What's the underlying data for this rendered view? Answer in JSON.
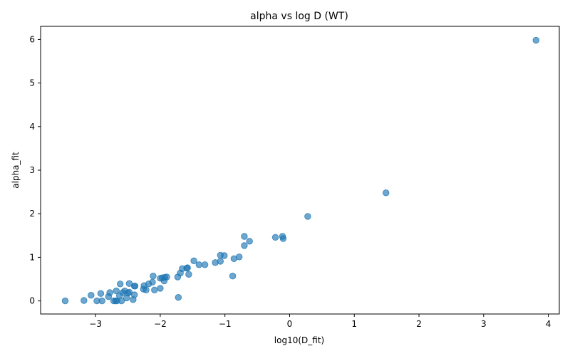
{
  "chart_data": {
    "type": "scatter",
    "title": "alpha vs log D (WT)",
    "xlabel": "log10(D_fit)",
    "ylabel": "alpha_fit",
    "xlim": [
      -3.85,
      4.17
    ],
    "ylim": [
      -0.3,
      6.3
    ],
    "xticks": [
      -3,
      -2,
      -1,
      0,
      1,
      2,
      3,
      4
    ],
    "xtick_labels": [
      "−3",
      "−2",
      "−1",
      "0",
      "1",
      "2",
      "3",
      "4"
    ],
    "yticks": [
      0,
      1,
      2,
      3,
      4,
      5,
      6
    ],
    "ytick_labels": [
      "0",
      "1",
      "2",
      "3",
      "4",
      "5",
      "6"
    ],
    "grid": false,
    "legend": "none",
    "marker_color": "#1f77b4",
    "marker_alpha": 0.65,
    "points": [
      [
        -3.47,
        0.0
      ],
      [
        -3.18,
        0.01
      ],
      [
        -3.07,
        0.13
      ],
      [
        -2.98,
        0.0
      ],
      [
        -2.92,
        0.17
      ],
      [
        -2.9,
        0.0
      ],
      [
        -2.8,
        0.1
      ],
      [
        -2.78,
        0.19
      ],
      [
        -2.72,
        0.0
      ],
      [
        -2.69,
        0.0
      ],
      [
        -2.67,
        0.0
      ],
      [
        -2.68,
        0.23
      ],
      [
        -2.63,
        0.12
      ],
      [
        -2.62,
        0.39
      ],
      [
        -2.6,
        0.0
      ],
      [
        -2.58,
        0.19
      ],
      [
        -2.55,
        0.23
      ],
      [
        -2.52,
        0.07
      ],
      [
        -2.5,
        0.18
      ],
      [
        -2.48,
        0.4
      ],
      [
        -2.48,
        0.2
      ],
      [
        -2.42,
        0.03
      ],
      [
        -2.4,
        0.14
      ],
      [
        -2.4,
        0.34
      ],
      [
        -2.39,
        0.34
      ],
      [
        -2.26,
        0.27
      ],
      [
        -2.25,
        0.35
      ],
      [
        -2.22,
        0.25
      ],
      [
        -2.18,
        0.39
      ],
      [
        -2.12,
        0.43
      ],
      [
        -2.11,
        0.57
      ],
      [
        -2.09,
        0.25
      ],
      [
        -2.0,
        0.29
      ],
      [
        -2.0,
        0.52
      ],
      [
        -1.97,
        0.53
      ],
      [
        -1.94,
        0.46
      ],
      [
        -1.93,
        0.54
      ],
      [
        -1.9,
        0.55
      ],
      [
        -1.73,
        0.55
      ],
      [
        -1.72,
        0.08
      ],
      [
        -1.69,
        0.64
      ],
      [
        -1.66,
        0.74
      ],
      [
        -1.59,
        0.75
      ],
      [
        -1.58,
        0.76
      ],
      [
        -1.56,
        0.61
      ],
      [
        -1.48,
        0.92
      ],
      [
        -1.4,
        0.83
      ],
      [
        -1.31,
        0.83
      ],
      [
        -1.15,
        0.88
      ],
      [
        -1.07,
        1.05
      ],
      [
        -1.07,
        0.91
      ],
      [
        -1.01,
        1.04
      ],
      [
        -0.88,
        0.57
      ],
      [
        -0.86,
        0.97
      ],
      [
        -0.78,
        1.01
      ],
      [
        -0.7,
        1.48
      ],
      [
        -0.7,
        1.27
      ],
      [
        -0.62,
        1.37
      ],
      [
        -0.22,
        1.46
      ],
      [
        -0.11,
        1.48
      ],
      [
        -0.1,
        1.43
      ],
      [
        0.28,
        1.94
      ],
      [
        1.49,
        2.48
      ],
      [
        3.81,
        5.98
      ]
    ]
  }
}
